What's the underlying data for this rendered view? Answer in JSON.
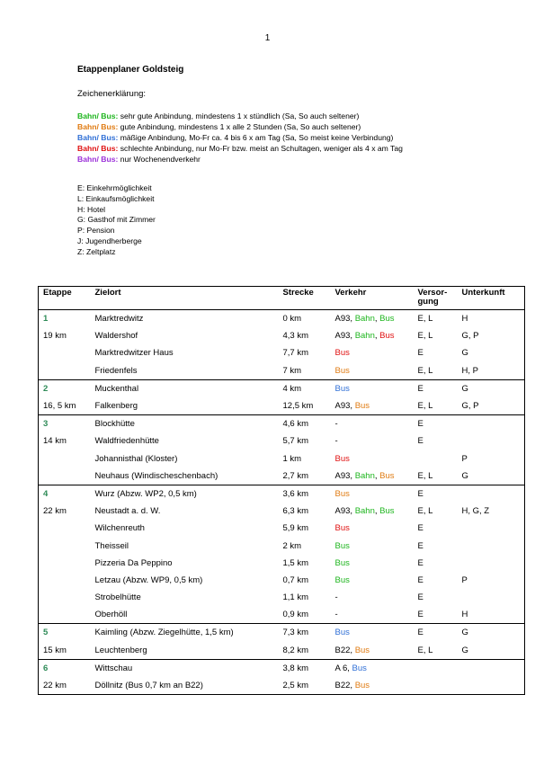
{
  "page_number": "1",
  "title": "Etappenplaner Goldsteig",
  "legend_heading": "Zeichenerklärung:",
  "colors": {
    "green": "#1db51d",
    "orange": "#e07b12",
    "blue": "#2f6fd6",
    "red": "#e01010",
    "purple": "#9b30d9",
    "stage": "#2e8b57"
  },
  "legend": [
    {
      "label": "Bahn/ Bus:",
      "color": "green",
      "text": " sehr gute Anbindung, mindestens 1 x stündlich (Sa, So auch seltener)"
    },
    {
      "label": "Bahn/ Bus:",
      "color": "orange",
      "text": " gute Anbindung, mindestens 1 x alle 2 Stunden (Sa, So auch seltener)"
    },
    {
      "label": "Bahn/ Bus:",
      "color": "blue",
      "text": " mäßige Anbindung, Mo-Fr ca. 4 bis 6 x am Tag (Sa, So meist keine Verbindung)"
    },
    {
      "label": "Bahn/ Bus:",
      "color": "red",
      "text": " schlechte Anbindung, nur Mo-Fr bzw. meist an Schultagen, weniger als 4 x am Tag"
    },
    {
      "label": "Bahn/ Bus:",
      "color": "purple",
      "text": " nur Wochenendverkehr"
    }
  ],
  "abbreviations": [
    "E: Einkehrmöglichkeit",
    "L: Einkaufsmöglichkeit",
    "H: Hotel",
    "G: Gasthof mit Zimmer",
    "P: Pension",
    "J: Jugendherberge",
    "Z: Zeltplatz"
  ],
  "table": {
    "headers": {
      "etappe": "Etappe",
      "zielort": "Zielort",
      "strecke": "Strecke",
      "verkehr": "Verkehr",
      "versorgung": "Versor-\ngung",
      "unterkunft": "Unterkunft"
    },
    "rows": [
      {
        "stage": "1",
        "etappe": "1",
        "zielort": "Marktredwitz",
        "strecke": "0 km",
        "verkehr": [
          {
            "t": "A93, ",
            "c": "black"
          },
          {
            "t": "Bahn",
            "c": "green"
          },
          {
            "t": ", ",
            "c": "black"
          },
          {
            "t": "Bus",
            "c": "green"
          }
        ],
        "versorgung": "E, L",
        "unterkunft": "H"
      },
      {
        "etappe": "19 km",
        "zielort": "Waldershof",
        "strecke": "4,3 km",
        "verkehr": [
          {
            "t": "A93, ",
            "c": "black"
          },
          {
            "t": "Bahn",
            "c": "green"
          },
          {
            "t": ", ",
            "c": "black"
          },
          {
            "t": "Bus",
            "c": "red"
          }
        ],
        "versorgung": "E, L",
        "unterkunft": "G, P"
      },
      {
        "etappe": "",
        "zielort": "Marktredwitzer Haus",
        "strecke": "7,7 km",
        "verkehr": [
          {
            "t": "Bus",
            "c": "red"
          }
        ],
        "versorgung": "E",
        "unterkunft": "G"
      },
      {
        "etappe": "",
        "zielort": "Friedenfels",
        "strecke": "7 km",
        "verkehr": [
          {
            "t": "Bus",
            "c": "orange"
          }
        ],
        "versorgung": "E, L",
        "unterkunft": "H, P"
      },
      {
        "stage": "2",
        "etappe": "2",
        "zielort": "Muckenthal",
        "strecke": "4 km",
        "verkehr": [
          {
            "t": "Bus",
            "c": "blue"
          }
        ],
        "versorgung": "E",
        "unterkunft": "G"
      },
      {
        "etappe": "16, 5 km",
        "zielort": "Falkenberg",
        "strecke": "12,5 km",
        "verkehr": [
          {
            "t": "A93, ",
            "c": "black"
          },
          {
            "t": "Bus",
            "c": "orange"
          }
        ],
        "versorgung": "E, L",
        "unterkunft": "G, P"
      },
      {
        "stage": "3",
        "etappe": "3",
        "zielort": "Blockhütte",
        "strecke": "4,6 km",
        "verkehr": [
          {
            "t": "-",
            "c": "black"
          }
        ],
        "versorgung": "E",
        "unterkunft": ""
      },
      {
        "etappe": "14 km",
        "zielort": "Waldfriedenhütte",
        "strecke": "5,7 km",
        "verkehr": [
          {
            "t": "-",
            "c": "black"
          }
        ],
        "versorgung": "E",
        "unterkunft": ""
      },
      {
        "etappe": "",
        "zielort": "Johannisthal (Kloster)",
        "strecke": "1 km",
        "verkehr": [
          {
            "t": "Bus",
            "c": "red"
          }
        ],
        "versorgung": "",
        "unterkunft": "P"
      },
      {
        "etappe": "",
        "zielort": "Neuhaus (Windischeschenbach)",
        "strecke": "2,7 km",
        "verkehr": [
          {
            "t": "A93, ",
            "c": "black"
          },
          {
            "t": "Bahn",
            "c": "green"
          },
          {
            "t": ", ",
            "c": "black"
          },
          {
            "t": "Bus",
            "c": "orange"
          }
        ],
        "versorgung": "E, L",
        "unterkunft": "G"
      },
      {
        "stage": "4",
        "etappe": "4",
        "zielort": "Wurz (Abzw. WP2, 0,5 km)",
        "strecke": "3,6 km",
        "verkehr": [
          {
            "t": "Bus",
            "c": "orange"
          }
        ],
        "versorgung": "E",
        "unterkunft": ""
      },
      {
        "etappe": "22 km",
        "zielort": "Neustadt a. d. W.",
        "strecke": "6,3 km",
        "verkehr": [
          {
            "t": "A93, ",
            "c": "black"
          },
          {
            "t": "Bahn",
            "c": "green"
          },
          {
            "t": ", ",
            "c": "black"
          },
          {
            "t": "Bus",
            "c": "green"
          }
        ],
        "versorgung": "E, L",
        "unterkunft": "H, G, Z"
      },
      {
        "etappe": "",
        "zielort": "Wilchenreuth",
        "strecke": "5,9 km",
        "verkehr": [
          {
            "t": "Bus",
            "c": "red"
          }
        ],
        "versorgung": "E",
        "unterkunft": ""
      },
      {
        "etappe": "",
        "zielort": "Theisseil",
        "strecke": "2 km",
        "verkehr": [
          {
            "t": "Bus",
            "c": "green"
          }
        ],
        "versorgung": "E",
        "unterkunft": ""
      },
      {
        "etappe": "",
        "zielort": "Pizzeria Da Peppino",
        "strecke": "1,5 km",
        "verkehr": [
          {
            "t": "Bus",
            "c": "green"
          }
        ],
        "versorgung": "E",
        "unterkunft": ""
      },
      {
        "etappe": "",
        "zielort": "Letzau (Abzw. WP9, 0,5 km)",
        "strecke": "0,7 km",
        "verkehr": [
          {
            "t": "Bus",
            "c": "green"
          }
        ],
        "versorgung": "E",
        "unterkunft": "P"
      },
      {
        "etappe": "",
        "zielort": "Strobelhütte",
        "strecke": "1,1 km",
        "verkehr": [
          {
            "t": "-",
            "c": "black"
          }
        ],
        "versorgung": "E",
        "unterkunft": ""
      },
      {
        "etappe": "",
        "zielort": "Oberhöll",
        "strecke": "0,9 km",
        "verkehr": [
          {
            "t": "-",
            "c": "black"
          }
        ],
        "versorgung": "E",
        "unterkunft": "H"
      },
      {
        "stage": "5",
        "etappe": "5",
        "zielort": "Kaimling  (Abzw. Ziegelhütte, 1,5 km)",
        "strecke": "7,3 km",
        "verkehr": [
          {
            "t": "Bus",
            "c": "blue"
          }
        ],
        "versorgung": "E",
        "unterkunft": "G"
      },
      {
        "etappe": "15 km",
        "zielort": "Leuchtenberg",
        "strecke": "8,2 km",
        "verkehr": [
          {
            "t": "B22, ",
            "c": "black"
          },
          {
            "t": "Bus",
            "c": "orange"
          }
        ],
        "versorgung": "E, L",
        "unterkunft": "G"
      },
      {
        "stage": "6",
        "etappe": "6",
        "zielort": "Wittschau",
        "strecke": "3,8 km",
        "verkehr": [
          {
            "t": "A 6, ",
            "c": "black"
          },
          {
            "t": "Bus",
            "c": "blue"
          }
        ],
        "versorgung": "",
        "unterkunft": ""
      },
      {
        "etappe": "22 km",
        "zielort": "Döllnitz (Bus 0,7 km an B22)",
        "strecke": "2,5 km",
        "verkehr": [
          {
            "t": "B22, ",
            "c": "black"
          },
          {
            "t": "Bus",
            "c": "orange"
          }
        ],
        "versorgung": "",
        "unterkunft": ""
      }
    ]
  }
}
